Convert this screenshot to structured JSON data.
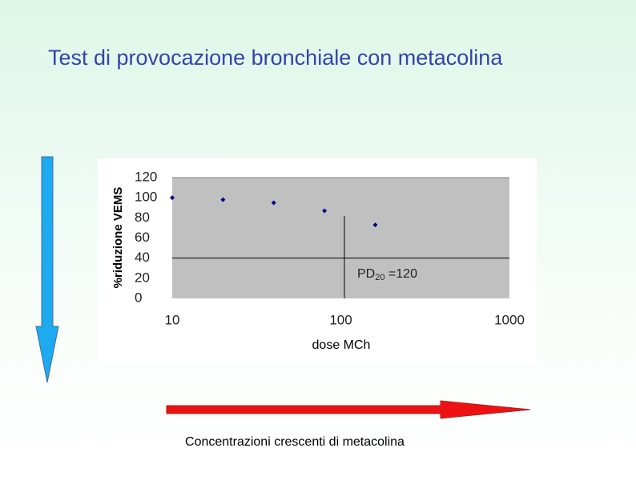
{
  "slide": {
    "title": "Test di provocazione bronchiale con metacolina",
    "caption": "Concentrazioni crescenti di metacolina"
  },
  "chart_data": {
    "type": "scatter",
    "x": [
      10,
      20,
      40,
      80,
      160
    ],
    "values": [
      100,
      98,
      95,
      87,
      73
    ],
    "color": "#000080",
    "xlim": [
      10,
      1000
    ],
    "xticks": [
      10,
      100,
      1000
    ],
    "xscale": "log",
    "ylim": [
      0,
      120
    ],
    "yticks": [
      0,
      20,
      40,
      60,
      80,
      100,
      120
    ],
    "xlabel": "dose MCh",
    "ylabel": "%riduzione VEMS",
    "reference_lines": {
      "x": 105,
      "y": 40
    },
    "annotation": {
      "base": "PD",
      "subscript": "20",
      "text": " =120"
    }
  }
}
